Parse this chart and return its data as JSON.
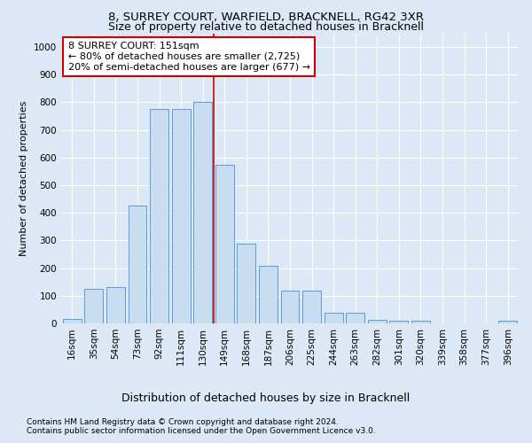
{
  "title": "8, SURREY COURT, WARFIELD, BRACKNELL, RG42 3XR",
  "subtitle": "Size of property relative to detached houses in Bracknell",
  "xlabel": "Distribution of detached houses by size in Bracknell",
  "ylabel": "Number of detached properties",
  "categories": [
    "16sqm",
    "35sqm",
    "54sqm",
    "73sqm",
    "92sqm",
    "111sqm",
    "130sqm",
    "149sqm",
    "168sqm",
    "187sqm",
    "206sqm",
    "225sqm",
    "244sqm",
    "263sqm",
    "282sqm",
    "301sqm",
    "320sqm",
    "339sqm",
    "358sqm",
    "377sqm",
    "396sqm"
  ],
  "values": [
    15,
    125,
    130,
    425,
    775,
    775,
    800,
    575,
    290,
    210,
    120,
    120,
    40,
    40,
    12,
    10,
    10,
    0,
    0,
    0,
    10
  ],
  "bar_color": "#c9ddf0",
  "bar_edge_color": "#5b9bd5",
  "vline_color": "#cc0000",
  "vline_x": 6.5,
  "annotation_text": "8 SURREY COURT: 151sqm\n← 80% of detached houses are smaller (2,725)\n20% of semi-detached houses are larger (677) →",
  "annotation_box_color": "#ffffff",
  "annotation_box_edge": "#cc0000",
  "ylim": [
    0,
    1050
  ],
  "yticks": [
    0,
    100,
    200,
    300,
    400,
    500,
    600,
    700,
    800,
    900,
    1000
  ],
  "footer_line1": "Contains HM Land Registry data © Crown copyright and database right 2024.",
  "footer_line2": "Contains public sector information licensed under the Open Government Licence v3.0.",
  "bg_color": "#dce8f5",
  "plot_bg_color": "#dce8f5",
  "grid_color": "#ffffff",
  "title_fontsize": 9.5,
  "subtitle_fontsize": 9,
  "xlabel_fontsize": 9,
  "ylabel_fontsize": 8,
  "tick_fontsize": 7.5,
  "annotation_fontsize": 8,
  "footer_fontsize": 6.5
}
